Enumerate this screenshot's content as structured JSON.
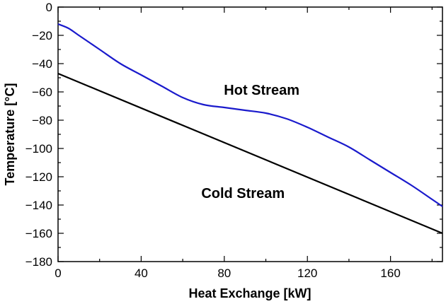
{
  "chart_data": {
    "type": "line",
    "xlabel": "Heat Exchange [kW]",
    "ylabel": "Temperature [°C]",
    "xlim": [
      0,
      185
    ],
    "ylim": [
      -180,
      0
    ],
    "xticks": [
      0,
      40,
      80,
      120,
      160
    ],
    "yticks": [
      0,
      -20,
      -40,
      -60,
      -80,
      -100,
      -120,
      -140,
      -160,
      -180
    ],
    "grid": false,
    "series": [
      {
        "name": "Hot Stream",
        "color": "#1a1acc",
        "x": [
          0,
          5,
          10,
          20,
          30,
          40,
          50,
          60,
          70,
          80,
          90,
          100,
          110,
          120,
          130,
          140,
          150,
          160,
          170,
          180,
          185
        ],
        "y": [
          -12,
          -15,
          -20,
          -30,
          -40,
          -48,
          -56,
          -64,
          -69,
          -71,
          -73,
          -75,
          -79,
          -85,
          -92,
          -99,
          -108,
          -117,
          -126,
          -136,
          -141
        ]
      },
      {
        "name": "Cold Stream",
        "color": "#000000",
        "x": [
          0,
          185
        ],
        "y": [
          -47,
          -160
        ]
      }
    ],
    "annotations": [
      {
        "text": "Hot Stream",
        "x": 98,
        "y": -62
      },
      {
        "text": "Cold Stream",
        "x": 89,
        "y": -135
      }
    ]
  }
}
